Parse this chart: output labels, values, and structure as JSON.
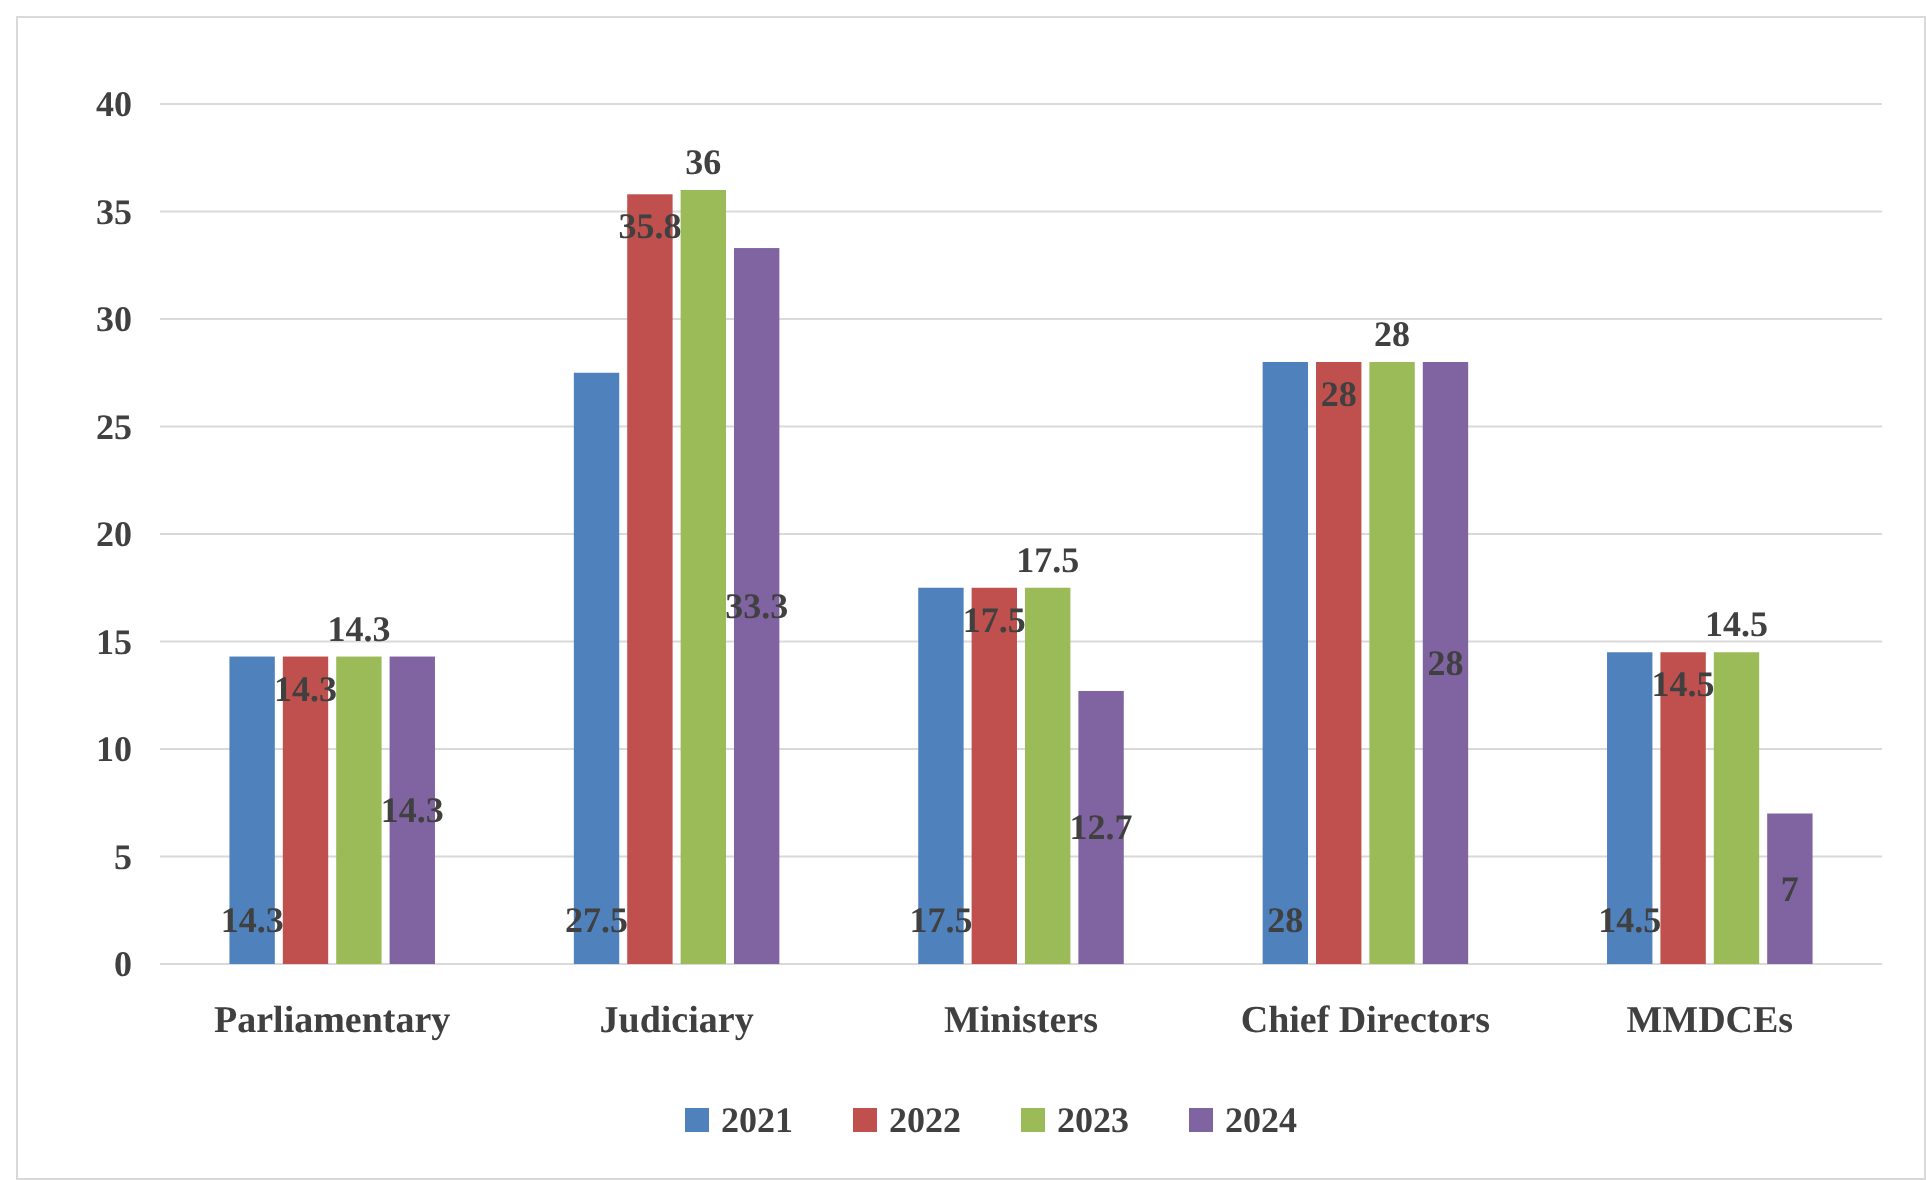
{
  "chart_data": {
    "type": "bar",
    "categories": [
      "Parliamentary",
      "Judiciary",
      "Ministers",
      "Chief Directors",
      "MMDCEs"
    ],
    "series": [
      {
        "name": "2021",
        "color": "#4f81bd",
        "values": [
          14.3,
          27.5,
          17.5,
          28,
          14.5
        ]
      },
      {
        "name": "2022",
        "color": "#c0504d",
        "values": [
          14.3,
          35.8,
          17.5,
          28,
          14.5
        ]
      },
      {
        "name": "2023",
        "color": "#9bbb59",
        "values": [
          14.3,
          36,
          17.5,
          28,
          14.5
        ]
      },
      {
        "name": "2024",
        "color": "#8064a2",
        "values": [
          14.3,
          33.3,
          12.7,
          28,
          7
        ]
      }
    ],
    "ylim": [
      0,
      40
    ],
    "yticks": [
      0,
      5,
      10,
      15,
      20,
      25,
      30,
      35,
      40
    ],
    "grid": "y",
    "legend": "bottom",
    "data_labels": true
  }
}
